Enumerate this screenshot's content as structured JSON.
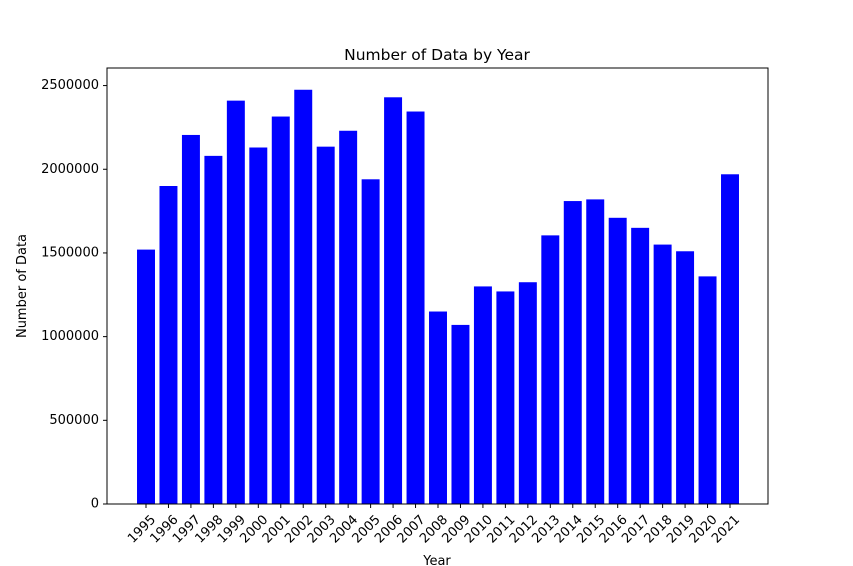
{
  "chart_data": {
    "type": "bar",
    "title": "Number of Data by Year",
    "xlabel": "Year",
    "ylabel": "Number of Data",
    "categories": [
      "1995",
      "1996",
      "1997",
      "1998",
      "1999",
      "2000",
      "2001",
      "2002",
      "2003",
      "2004",
      "2005",
      "2006",
      "2007",
      "2008",
      "2009",
      "2010",
      "2011",
      "2012",
      "2013",
      "2014",
      "2015",
      "2016",
      "2017",
      "2018",
      "2019",
      "2020",
      "2021"
    ],
    "values": [
      1520000,
      1900000,
      2205000,
      2080000,
      2410000,
      2130000,
      2315000,
      2475000,
      2135000,
      2230000,
      1940000,
      2430000,
      2345000,
      1150000,
      1070000,
      1300000,
      1270000,
      1325000,
      1605000,
      1810000,
      1820000,
      1710000,
      1650000,
      1550000,
      1510000,
      1360000,
      1970000
    ],
    "y_ticks": [
      0,
      500000,
      1000000,
      1500000,
      2000000,
      2500000
    ],
    "ylim": [
      0,
      2600000
    ],
    "bar_color": "#0000ff",
    "grid": false,
    "legend": "none"
  }
}
